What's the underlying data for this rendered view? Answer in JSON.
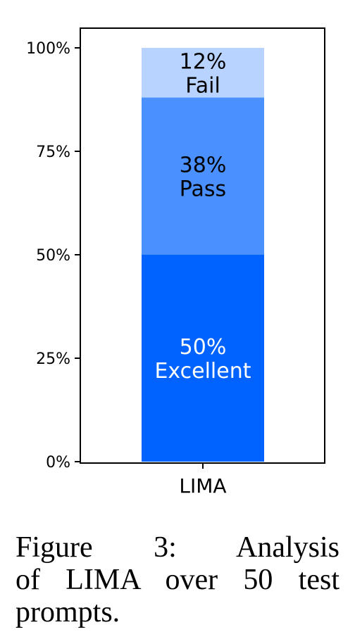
{
  "chart_data": {
    "type": "bar",
    "stacked": true,
    "categories": [
      "LIMA"
    ],
    "series": [
      {
        "name": "Excellent",
        "values": [
          50
        ],
        "label": "50%",
        "color": "#0062ff",
        "text_color": "#ffffff"
      },
      {
        "name": "Pass",
        "values": [
          38
        ],
        "label": "38%",
        "color": "#4a90ff",
        "text_color": "#000000"
      },
      {
        "name": "Fail",
        "values": [
          12
        ],
        "label": "12%",
        "color": "#b8d3ff",
        "text_color": "#000000"
      }
    ],
    "ylim": [
      0,
      100
    ],
    "yticks": [
      0,
      25,
      50,
      75,
      100
    ],
    "ytick_labels": [
      "0%",
      "25%",
      "50%",
      "75%",
      "100%"
    ],
    "title": "",
    "xlabel": "",
    "ylabel": "",
    "grid": false
  },
  "caption": {
    "line1": "Figure 3: Analysis",
    "line2": "of LIMA over 50 test",
    "line3": "prompts."
  }
}
